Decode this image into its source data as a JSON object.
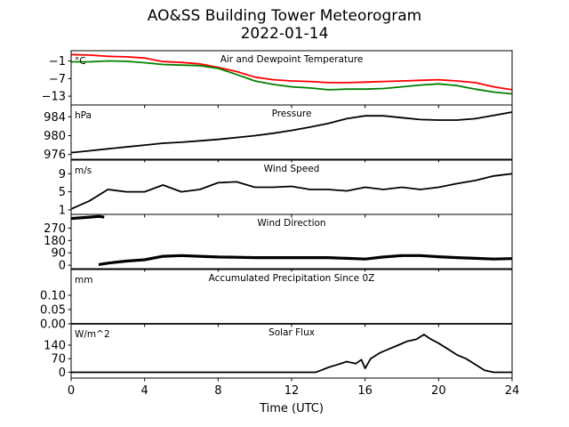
{
  "title": "AO&SS Building Tower Meteorogram",
  "date": "2022-01-14",
  "xlabel": "Time (UTC)",
  "chart_data": {
    "type": "line",
    "x_range": [
      0,
      24
    ],
    "x_ticks": [
      0,
      4,
      8,
      12,
      16,
      20,
      24
    ],
    "x_tick_labels": [
      "0",
      "4",
      "8",
      "12",
      "16",
      "20",
      "24"
    ],
    "colors": {
      "temperature": "#ff0000",
      "dewpoint": "#008000",
      "default": "#000000"
    },
    "panels": [
      {
        "title": "Air and Dewpoint Temperature",
        "unit": "°C",
        "ylim": [
          -16,
          2.5
        ],
        "y_ticks": [
          -1,
          -7,
          -13
        ],
        "y_tick_labels": [
          "−1",
          "−7",
          "−13"
        ],
        "series": [
          {
            "key": "temperature",
            "x": [
              0,
              1,
              2,
              3,
              4,
              5,
              6,
              7,
              8,
              9,
              10,
              11,
              12,
              13,
              14,
              15,
              16,
              17,
              18,
              19,
              20,
              21,
              22,
              23,
              24
            ],
            "y": [
              1.2,
              1.0,
              0.6,
              0.4,
              0.0,
              -1.2,
              -1.5,
              -2.0,
              -3.2,
              -4.6,
              -6.5,
              -7.4,
              -7.8,
              -8.0,
              -8.4,
              -8.4,
              -8.2,
              -8.0,
              -7.8,
              -7.6,
              -7.4,
              -7.8,
              -8.4,
              -9.8,
              -10.8
            ]
          },
          {
            "key": "dewpoint",
            "x": [
              0,
              1,
              2,
              3,
              4,
              5,
              6,
              7,
              8,
              9,
              10,
              11,
              12,
              13,
              14,
              15,
              16,
              17,
              18,
              19,
              20,
              21,
              22,
              23,
              24
            ],
            "y": [
              -1.3,
              -1.3,
              -1.0,
              -1.1,
              -1.6,
              -2.2,
              -2.4,
              -2.6,
              -3.5,
              -5.6,
              -7.8,
              -9.0,
              -9.8,
              -10.2,
              -10.8,
              -10.6,
              -10.6,
              -10.4,
              -9.8,
              -9.2,
              -8.8,
              -9.4,
              -10.6,
              -11.6,
              -12.2
            ]
          }
        ]
      },
      {
        "title": "Pressure",
        "unit": "hPa",
        "ylim": [
          975,
          986.5
        ],
        "y_ticks": [
          984,
          980,
          976
        ],
        "y_tick_labels": [
          "984",
          "980",
          "976"
        ],
        "series": [
          {
            "key": "default",
            "x": [
              0,
              1,
              2,
              3,
              4,
              5,
              6,
              7,
              8,
              9,
              10,
              11,
              12,
              13,
              14,
              15,
              16,
              17,
              18,
              19,
              20,
              21,
              22,
              23,
              24
            ],
            "y": [
              976.4,
              976.8,
              977.2,
              977.6,
              978.0,
              978.4,
              978.6,
              978.9,
              979.2,
              979.6,
              980.0,
              980.5,
              981.1,
              981.8,
              982.6,
              983.6,
              984.2,
              984.2,
              983.8,
              983.4,
              983.3,
              983.3,
              983.6,
              984.3,
              985.0
            ]
          }
        ]
      },
      {
        "title": "Wind Speed",
        "unit": "m/s",
        "ylim": [
          0,
          12
        ],
        "y_ticks": [
          9,
          5,
          1
        ],
        "y_tick_labels": [
          "9",
          "5",
          "1"
        ],
        "series": [
          {
            "key": "default",
            "x": [
              0,
              1,
              2,
              3,
              4,
              5,
              6,
              7,
              8,
              9,
              10,
              11,
              12,
              13,
              14,
              15,
              16,
              17,
              18,
              19,
              20,
              21,
              22,
              23,
              24
            ],
            "y": [
              1.2,
              3.0,
              5.5,
              5.0,
              5.0,
              6.5,
              5.0,
              5.5,
              7.0,
              7.2,
              6.0,
              6.0,
              6.2,
              5.5,
              5.5,
              5.2,
              6.0,
              5.5,
              6.0,
              5.5,
              6.0,
              6.8,
              7.5,
              8.5,
              9.0
            ]
          }
        ]
      },
      {
        "title": "Wind Direction",
        "unit": "",
        "ylim": [
          -25,
          370
        ],
        "y_ticks": [
          270,
          180,
          90,
          0
        ],
        "y_tick_labels": [
          "270",
          "180",
          "90",
          "0"
        ],
        "series": [
          {
            "key": "default",
            "x": [
              0,
              0.5,
              1.0,
              1.5,
              1.8
            ],
            "y": [
              340,
              345,
              350,
              355,
              350
            ]
          },
          {
            "key": "default",
            "x": [
              1.5,
              2,
              3,
              4,
              5,
              6,
              7,
              8,
              9,
              10,
              11,
              12,
              13,
              14,
              15,
              16,
              17,
              18,
              19,
              20,
              21,
              22,
              23,
              24
            ],
            "y": [
              5,
              15,
              30,
              40,
              65,
              70,
              65,
              60,
              58,
              55,
              55,
              55,
              55,
              55,
              50,
              45,
              60,
              70,
              70,
              62,
              55,
              50,
              45,
              48
            ]
          }
        ]
      },
      {
        "title": "Accumulated Precipitation Since 0Z",
        "unit": "mm",
        "ylim": [
          0,
          0.19
        ],
        "y_ticks": [
          0.1,
          0.05,
          0.0
        ],
        "y_tick_labels": [
          "0.10",
          "0.05",
          "0.00"
        ],
        "series": [
          {
            "key": "default",
            "x": [
              0,
              24
            ],
            "y": [
              0,
              0
            ]
          }
        ]
      },
      {
        "title": "Solar Flux",
        "unit": "W/m^2",
        "ylim": [
          -30,
          250
        ],
        "y_ticks": [
          140,
          70,
          0
        ],
        "y_tick_labels": [
          "140",
          "70",
          "0"
        ],
        "series": [
          {
            "key": "default",
            "x": [
              0,
              2,
              4,
              6,
              8,
              10,
              12,
              13.3,
              13.6,
              14,
              14.5,
              15,
              15.5,
              15.8,
              16,
              16.3,
              16.8,
              17.3,
              17.8,
              18.3,
              18.8,
              19.2,
              19.5,
              20,
              20.5,
              21,
              21.5,
              22,
              22.5,
              23,
              24
            ],
            "y": [
              0,
              0,
              0,
              0,
              0,
              0,
              0,
              0,
              10,
              25,
              40,
              55,
              45,
              65,
              20,
              70,
              100,
              120,
              140,
              160,
              170,
              195,
              175,
              150,
              120,
              90,
              70,
              40,
              10,
              0,
              0
            ]
          }
        ]
      }
    ]
  }
}
